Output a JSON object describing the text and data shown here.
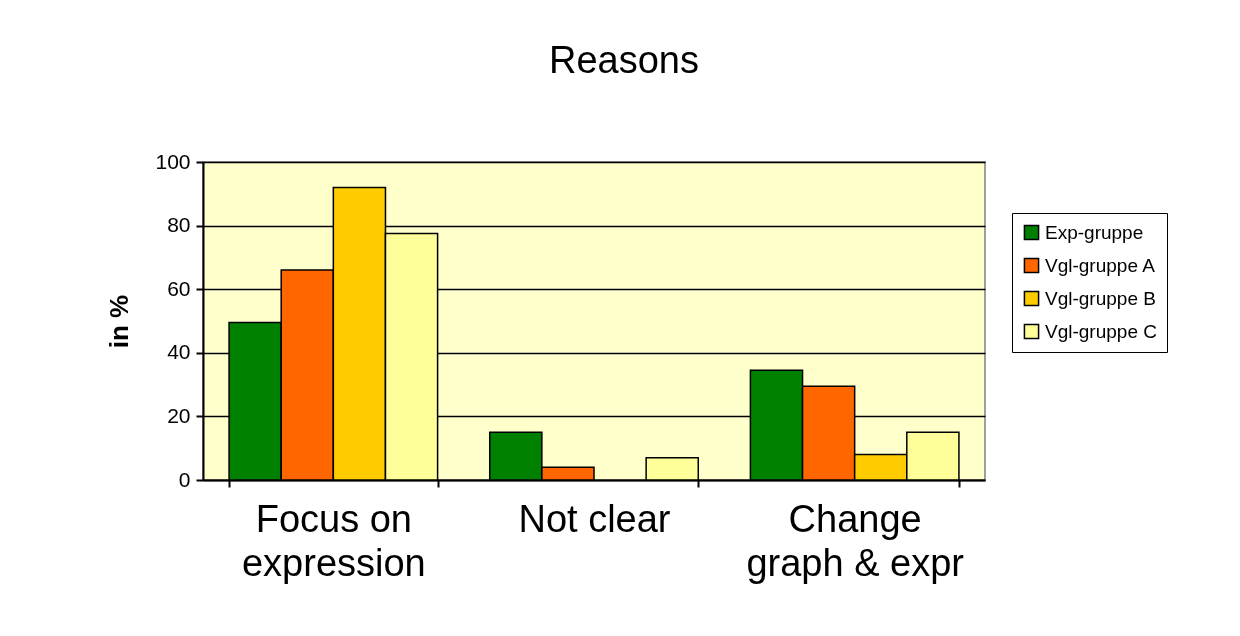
{
  "chart_data": {
    "type": "bar",
    "title": "Reasons",
    "ylabel": "in %",
    "categories": [
      "Focus on expression",
      "Not clear",
      "Change graph & expr"
    ],
    "series": [
      {
        "name": "Exp-gruppe",
        "color": "#008000",
        "values": [
          49.5,
          15,
          34.5
        ]
      },
      {
        "name": "Vgl-gruppe A",
        "color": "#ff6600",
        "values": [
          66,
          4,
          29.5
        ]
      },
      {
        "name": "Vgl-gruppe B",
        "color": "#ffcc00",
        "values": [
          92,
          null,
          8
        ]
      },
      {
        "name": "Vgl-gruppe C",
        "color": "#ffff99",
        "values": [
          77.5,
          7,
          15
        ]
      }
    ],
    "ylim": [
      0,
      100
    ],
    "yticks": [
      0,
      20,
      40,
      60,
      80,
      100
    ],
    "grid": "y",
    "legend": "right"
  }
}
